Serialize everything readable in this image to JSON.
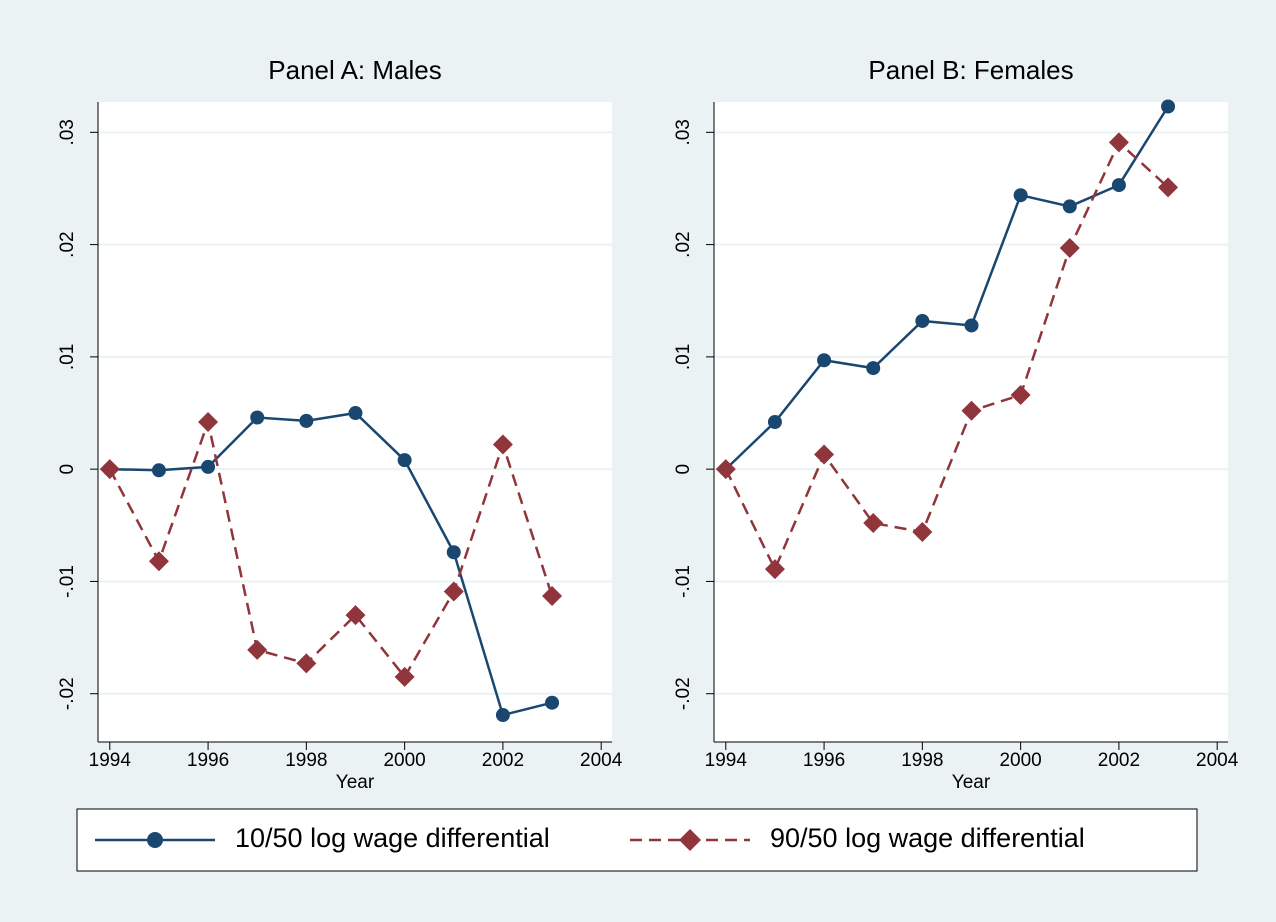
{
  "chart_data": [
    {
      "type": "line",
      "title": "Panel A: Males",
      "xlabel": "Year",
      "x": [
        1994,
        1995,
        1996,
        1997,
        1998,
        1999,
        2000,
        2001,
        2002,
        2003
      ],
      "series": [
        {
          "name": "10/50 log wage differential",
          "color": "#1a476f",
          "line_style": "solid",
          "marker": "circle",
          "values": [
            0,
            -0.0001,
            0.0002,
            0.0046,
            0.0043,
            0.005,
            0.0008,
            -0.0074,
            -0.0219,
            -0.0208
          ]
        },
        {
          "name": "90/50 log wage differential",
          "color": "#90353b",
          "line_style": "dash",
          "marker": "diamond",
          "values": [
            0,
            -0.0082,
            0.0042,
            -0.0161,
            -0.0173,
            -0.013,
            -0.0185,
            -0.0109,
            0.0022,
            -0.0113
          ]
        }
      ],
      "xlim": [
        1993.76,
        2004.22
      ],
      "ylim": [
        -0.0243,
        0.0327
      ],
      "xticks": [
        1994,
        1996,
        1998,
        2000,
        2002,
        2004
      ],
      "yticks": [
        {
          "value": -0.02,
          "label": "-.02"
        },
        {
          "value": -0.01,
          "label": "-.01"
        },
        0,
        {
          "value": 0.01,
          "label": ".01"
        },
        {
          "value": 0.02,
          "label": ".02"
        },
        {
          "value": 0.03,
          "label": ".03"
        }
      ],
      "grid": true
    },
    {
      "type": "line",
      "title": "Panel B: Females",
      "xlabel": "Year",
      "x": [
        1994,
        1995,
        1996,
        1997,
        1998,
        1999,
        2000,
        2001,
        2002,
        2003
      ],
      "series": [
        {
          "name": "10/50 log wage differential",
          "color": "#1a476f",
          "line_style": "solid",
          "marker": "circle",
          "values": [
            0,
            0.0042,
            0.0097,
            0.009,
            0.0132,
            0.0128,
            0.0244,
            0.0234,
            0.0253,
            0.0323
          ]
        },
        {
          "name": "90/50 log wage differential",
          "color": "#90353b",
          "line_style": "dash",
          "marker": "diamond",
          "values": [
            0,
            -0.0089,
            0.0013,
            -0.0048,
            -0.0056,
            0.0052,
            0.0066,
            0.0197,
            0.0291,
            0.0251
          ]
        }
      ],
      "xlim": [
        1993.76,
        2004.22
      ],
      "ylim": [
        -0.0243,
        0.0327
      ],
      "xticks": [
        1994,
        1996,
        1998,
        2000,
        2002,
        2004
      ],
      "yticks": [
        {
          "value": -0.02,
          "label": "-.02"
        },
        {
          "value": -0.01,
          "label": "-.01"
        },
        0,
        {
          "value": 0.01,
          "label": ".01"
        },
        {
          "value": 0.02,
          "label": ".02"
        },
        {
          "value": 0.03,
          "label": ".03"
        }
      ],
      "grid": true
    }
  ]
}
